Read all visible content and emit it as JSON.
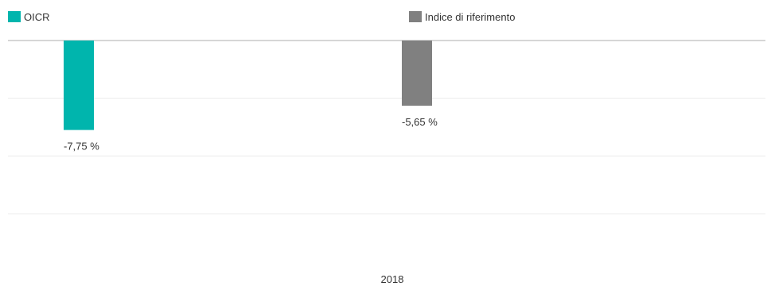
{
  "chart_data": {
    "type": "bar",
    "categories": [
      "2018"
    ],
    "series": [
      {
        "name": "OICR",
        "values": [
          -7.75
        ],
        "color": "#00b5ad",
        "value_label": "-7,75 %"
      },
      {
        "name": "Indice di riferimento",
        "values": [
          -5.65
        ],
        "color": "#808080",
        "value_label": "-5,65 %"
      }
    ],
    "ylim": [
      -20,
      0
    ],
    "grid": true,
    "legend": "top",
    "colors": {
      "grid": "#ececec",
      "baseline": "#c8c8c8",
      "text": "#333333"
    }
  }
}
